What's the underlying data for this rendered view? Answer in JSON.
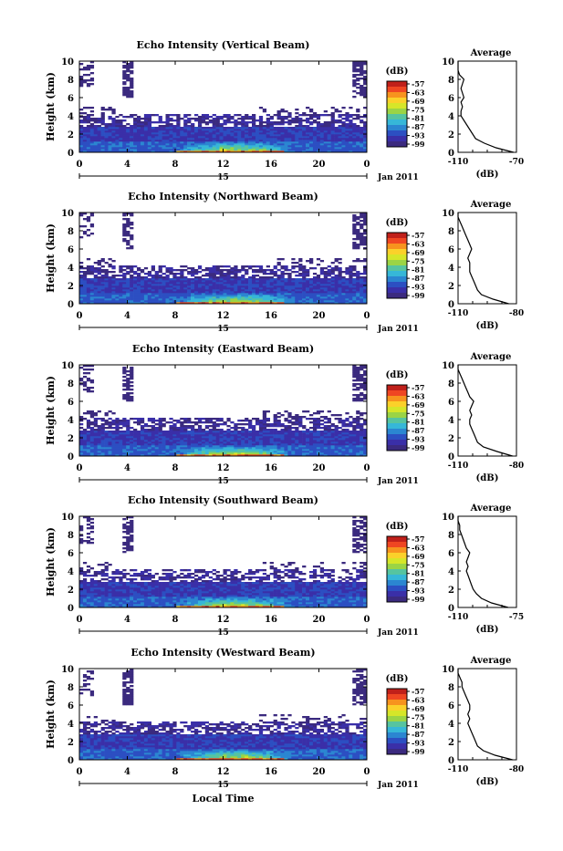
{
  "colorbar": {
    "unit": "(dB)",
    "ticks": [
      "-57",
      "-63",
      "-69",
      "-75",
      "-81",
      "-87",
      "-93",
      "-99"
    ],
    "colors": [
      "#c0201a",
      "#ef4622",
      "#f7931e",
      "#fbd12a",
      "#d6e629",
      "#9bd445",
      "#56c4a0",
      "#36b7d8",
      "#2b86d1",
      "#2c4fc2",
      "#3a2fa8",
      "#3b2a7f"
    ]
  },
  "common": {
    "ylabel": "Height (km)",
    "xlabel": "Local Time",
    "date_label": "Jan 2011",
    "day_tick": "15",
    "x_ticks": [
      "0",
      "4",
      "8",
      "12",
      "16",
      "20",
      "0"
    ],
    "y_ticks": [
      "0",
      "2",
      "4",
      "6",
      "8",
      "10"
    ],
    "avg_title": "Average",
    "avg_unit": "(dB)"
  },
  "chart_data": [
    {
      "type": "heatmap",
      "title": "Echo Intensity (Vertical Beam)",
      "xlabel": "",
      "ylabel": "Height (km)",
      "xlim": [
        0,
        24
      ],
      "ylim": [
        0,
        10
      ],
      "clim": [
        -99,
        -57
      ],
      "profile": {
        "title": "Average",
        "xlabel": "(dB)",
        "xlim": [
          -110,
          -70
        ],
        "xticks": [
          "-110",
          "-70"
        ],
        "height_km": [
          0,
          0.5,
          1,
          1.5,
          2,
          2.5,
          3,
          3.5,
          4,
          4.5,
          5,
          5.5,
          6,
          6.5,
          7,
          7.5,
          8,
          8.5,
          9,
          9.5,
          10
        ],
        "values_db": [
          -72,
          -84,
          -92,
          -98,
          -100,
          -102,
          -104,
          -106,
          -108,
          -108,
          -107,
          -108,
          -106,
          -107,
          -108,
          -107,
          -106,
          -109,
          -110,
          -110,
          -110
        ]
      }
    },
    {
      "type": "heatmap",
      "title": "Echo Intensity (Northward Beam)",
      "xlabel": "",
      "ylabel": "Height (km)",
      "xlim": [
        0,
        24
      ],
      "ylim": [
        0,
        10
      ],
      "clim": [
        -99,
        -57
      ],
      "profile": {
        "title": "Average",
        "xlabel": "(dB)",
        "xlim": [
          -110,
          -80
        ],
        "xticks": [
          "-110",
          "-80"
        ],
        "height_km": [
          0,
          0.5,
          1,
          1.5,
          2,
          2.5,
          3,
          3.5,
          4,
          4.5,
          5,
          5.5,
          6,
          6.5,
          7,
          7.5,
          8,
          8.5,
          9,
          9.5,
          10
        ],
        "values_db": [
          -84,
          -92,
          -98,
          -100,
          -101,
          -102,
          -103,
          -104,
          -104,
          -104,
          -105,
          -104,
          -103,
          -104,
          -105,
          -106,
          -107,
          -108,
          -109,
          -110,
          -110
        ]
      }
    },
    {
      "type": "heatmap",
      "title": "Echo Intensity (Eastward Beam)",
      "xlabel": "",
      "ylabel": "Height (km)",
      "xlim": [
        0,
        24
      ],
      "ylim": [
        0,
        10
      ],
      "clim": [
        -99,
        -57
      ],
      "profile": {
        "title": "Average",
        "xlabel": "(dB)",
        "xlim": [
          -110,
          -80
        ],
        "xticks": [
          "-110",
          "-80"
        ],
        "height_km": [
          0,
          0.5,
          1,
          1.5,
          2,
          2.5,
          3,
          3.5,
          4,
          4.5,
          5,
          5.5,
          6,
          6.5,
          7,
          7.5,
          8,
          8.5,
          9,
          9.5,
          10
        ],
        "values_db": [
          -82,
          -90,
          -97,
          -100,
          -101,
          -102,
          -103,
          -104,
          -104,
          -103,
          -104,
          -103,
          -102,
          -104,
          -105,
          -106,
          -107,
          -108,
          -109,
          -110,
          -110
        ]
      }
    },
    {
      "type": "heatmap",
      "title": "Echo Intensity (Southward Beam)",
      "xlabel": "",
      "ylabel": "Height (km)",
      "xlim": [
        0,
        24
      ],
      "ylim": [
        0,
        10
      ],
      "clim": [
        -99,
        -57
      ],
      "profile": {
        "title": "Average",
        "xlabel": "(dB)",
        "xlim": [
          -110,
          -75
        ],
        "xticks": [
          "-110",
          "-75"
        ],
        "height_km": [
          0,
          0.5,
          1,
          1.5,
          2,
          2.5,
          3,
          3.5,
          4,
          4.5,
          5,
          5.5,
          6,
          6.5,
          7,
          7.5,
          8,
          8.5,
          9,
          9.5,
          10
        ],
        "values_db": [
          -80,
          -90,
          -96,
          -99,
          -101,
          -102,
          -103,
          -104,
          -105,
          -104,
          -105,
          -104,
          -103,
          -105,
          -106,
          -107,
          -108,
          -109,
          -109,
          -110,
          -110
        ]
      }
    },
    {
      "type": "heatmap",
      "title": "Echo Intensity (Westward Beam)",
      "xlabel": "Local Time",
      "ylabel": "Height (km)",
      "xlim": [
        0,
        24
      ],
      "ylim": [
        0,
        10
      ],
      "clim": [
        -99,
        -57
      ],
      "profile": {
        "title": "Average",
        "xlabel": "(dB)",
        "xlim": [
          -110,
          -80
        ],
        "xticks": [
          "-110",
          "-80"
        ],
        "height_km": [
          0,
          0.5,
          1,
          1.5,
          2,
          2.5,
          3,
          3.5,
          4,
          4.5,
          5,
          5.5,
          6,
          6.5,
          7,
          7.5,
          8,
          8.5,
          9,
          9.5,
          10
        ],
        "values_db": [
          -82,
          -91,
          -97,
          -100,
          -101,
          -102,
          -103,
          -104,
          -105,
          -104,
          -105,
          -104,
          -104,
          -105,
          -106,
          -107,
          -108,
          -108,
          -109,
          -110,
          -110
        ]
      }
    }
  ]
}
